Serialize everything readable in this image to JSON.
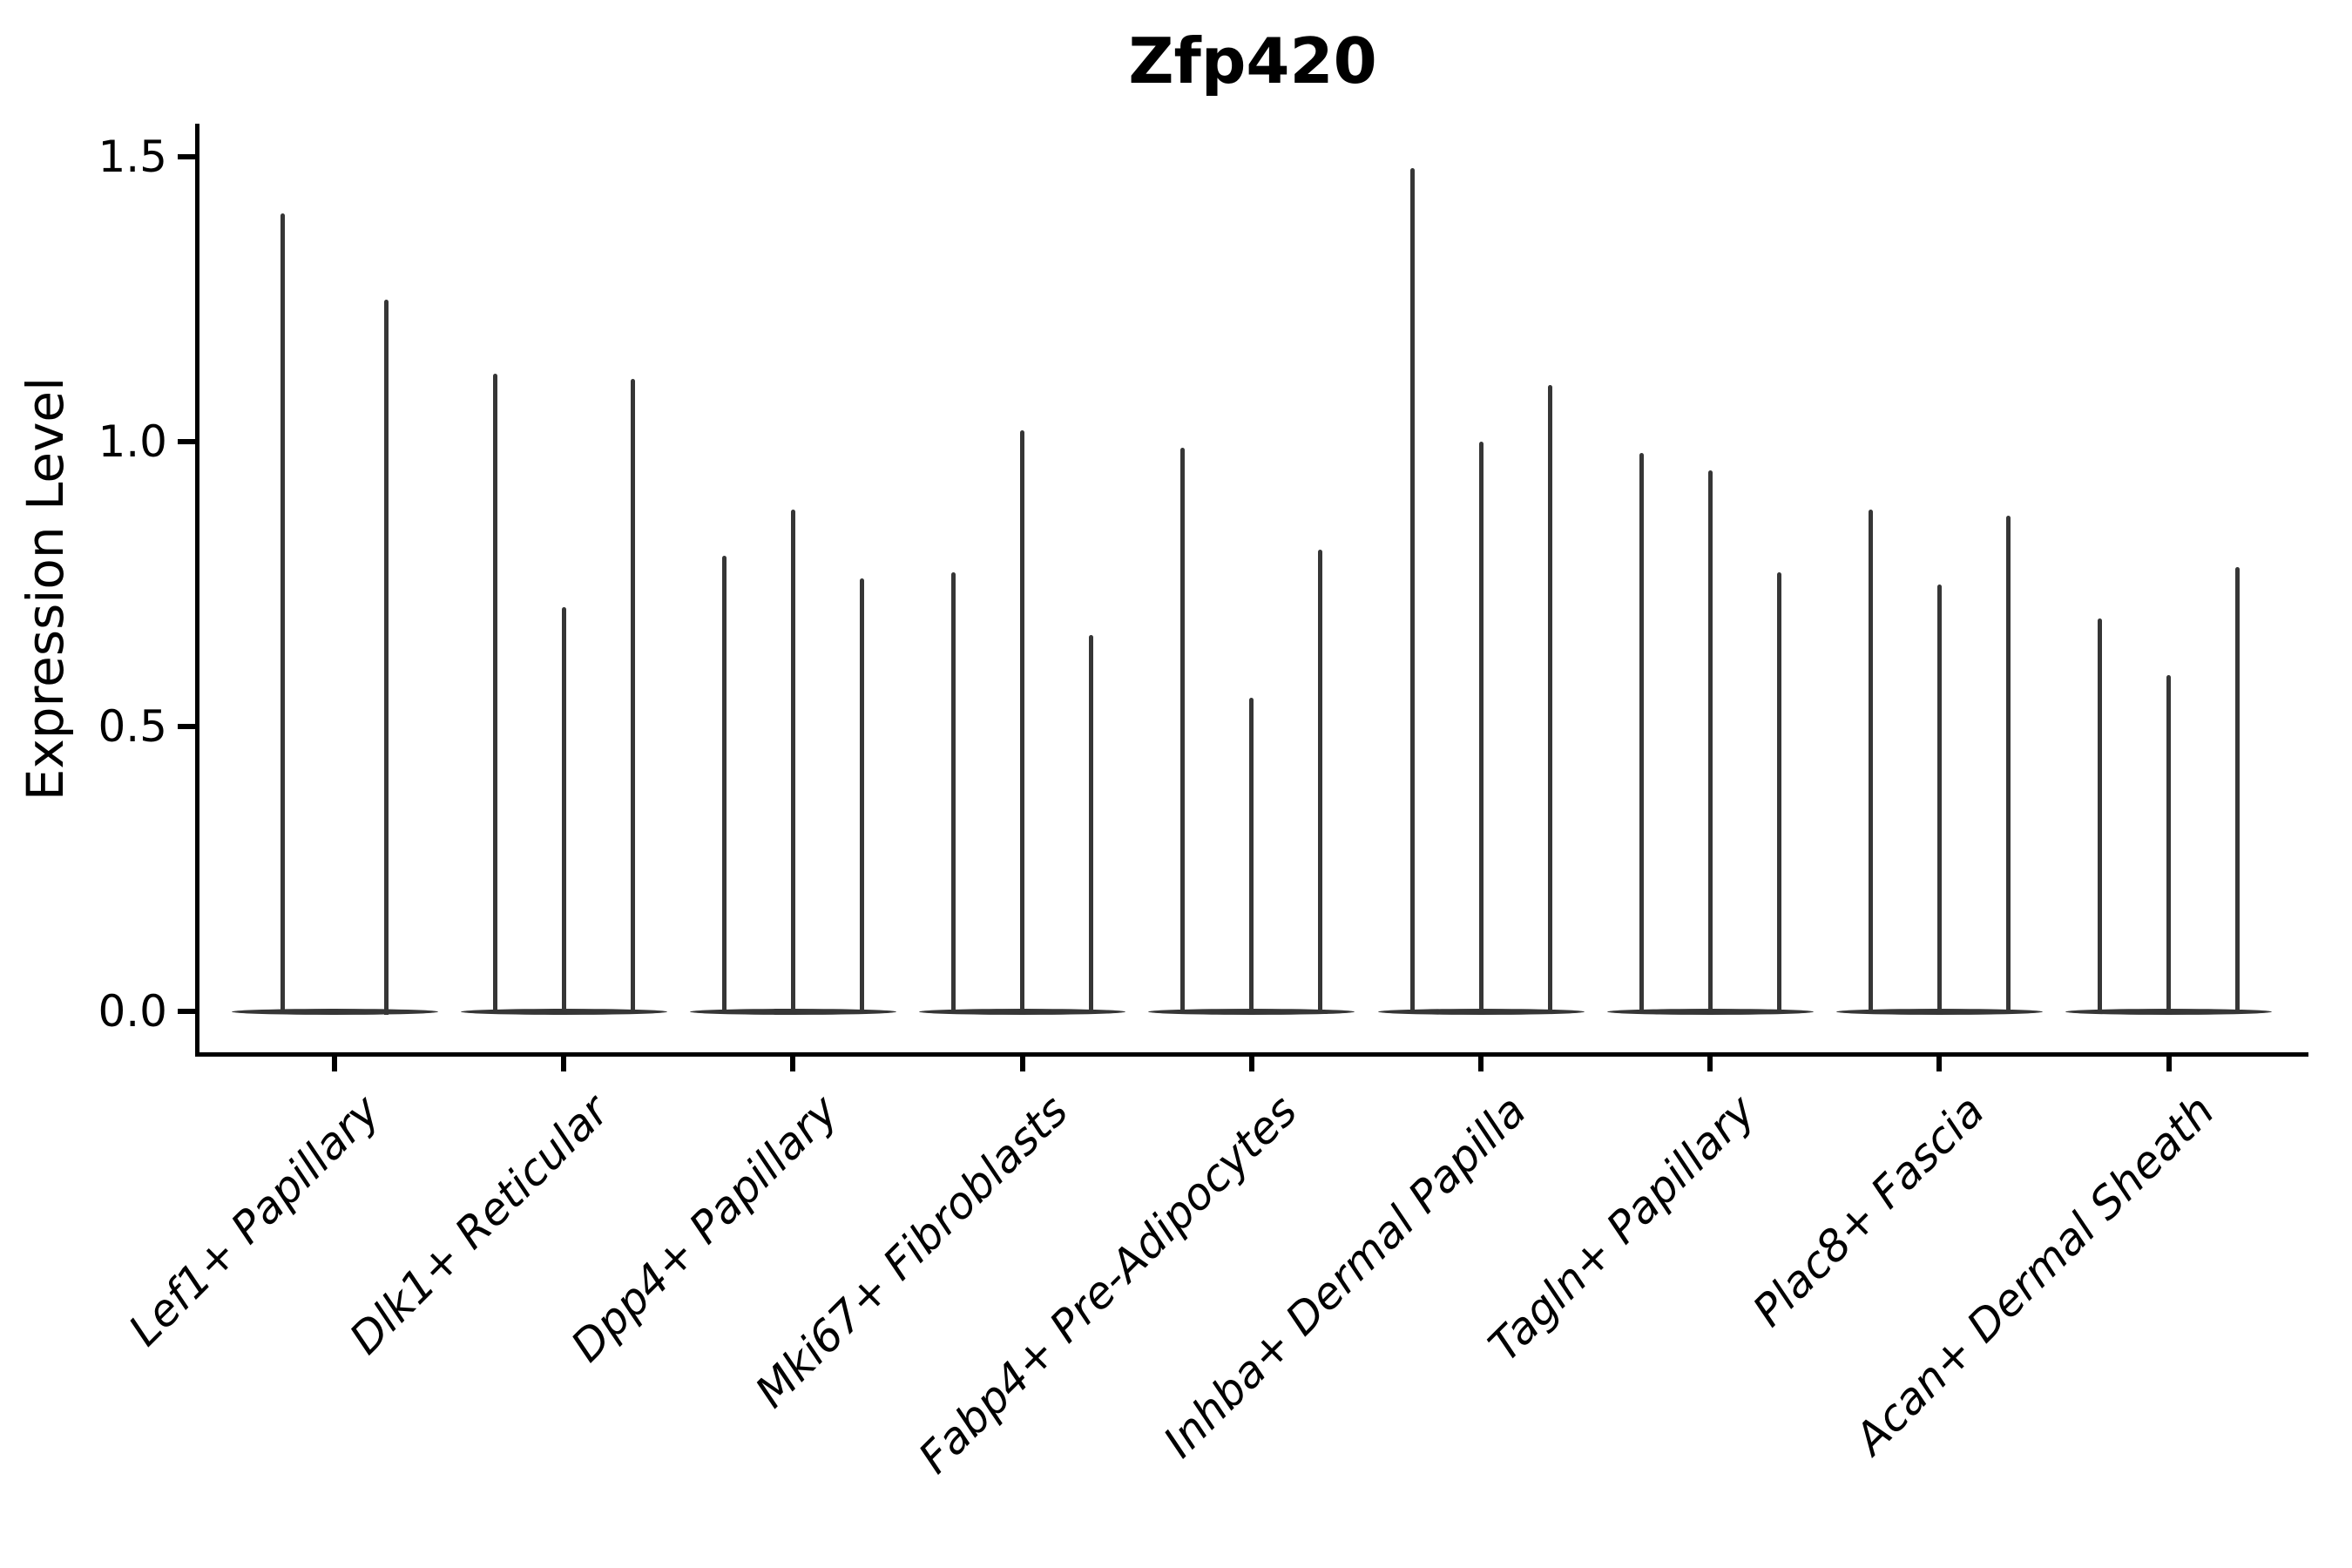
{
  "chart_data": {
    "type": "violin",
    "title": "Zfp420",
    "ylabel": "Expression Level",
    "xlabel": "",
    "yticks": [
      0.0,
      0.5,
      1.0,
      1.5
    ],
    "ytick_labels": [
      "0.0",
      "0.5",
      "1.0",
      "1.5"
    ],
    "ylim": [
      -0.08,
      1.56
    ],
    "grid": false,
    "legend": "none",
    "categories": [
      "Lef1+ Papillary",
      "Dlk1+ Reticular",
      "Dpp4+ Papillary",
      "Mki67+ Fibroblasts",
      "Fabp4+ Pre-Adipocytes",
      "Inhba+ Dermal Papilla",
      "Tagln+ Papillary",
      "Plac8+ Fascia",
      "Acan+ Dermal Sheath"
    ],
    "groups": [
      {
        "label": "Lef1+ Papillary",
        "violin_maxima": [
          1.4,
          1.25
        ]
      },
      {
        "label": "Dlk1+ Reticular",
        "violin_maxima": [
          1.12,
          0.71,
          1.11
        ]
      },
      {
        "label": "Dpp4+ Papillary",
        "violin_maxima": [
          0.8,
          0.88,
          0.76
        ]
      },
      {
        "label": "Mki67+ Fibroblasts",
        "violin_maxima": [
          0.77,
          1.02,
          0.66
        ]
      },
      {
        "label": "Fabp4+ Pre-Adipocytes",
        "violin_maxima": [
          0.99,
          0.55,
          0.81
        ]
      },
      {
        "label": "Inhba+ Dermal Papilla",
        "violin_maxima": [
          1.48,
          1.0,
          1.1
        ]
      },
      {
        "label": "Tagln+ Papillary",
        "violin_maxima": [
          0.98,
          0.95,
          0.77
        ]
      },
      {
        "label": "Plac8+ Fascia",
        "violin_maxima": [
          0.88,
          0.75,
          0.87
        ]
      },
      {
        "label": "Acan+ Dermal Sheath",
        "violin_maxima": [
          0.69,
          0.59,
          0.78
        ]
      }
    ],
    "description": "Violin plot; expression mass concentrated at 0 (flat bases) with thin tails rising to each violin maximum",
    "colors": {
      "violin": "#363636",
      "axis": "#000000",
      "background": "#ffffff"
    }
  }
}
